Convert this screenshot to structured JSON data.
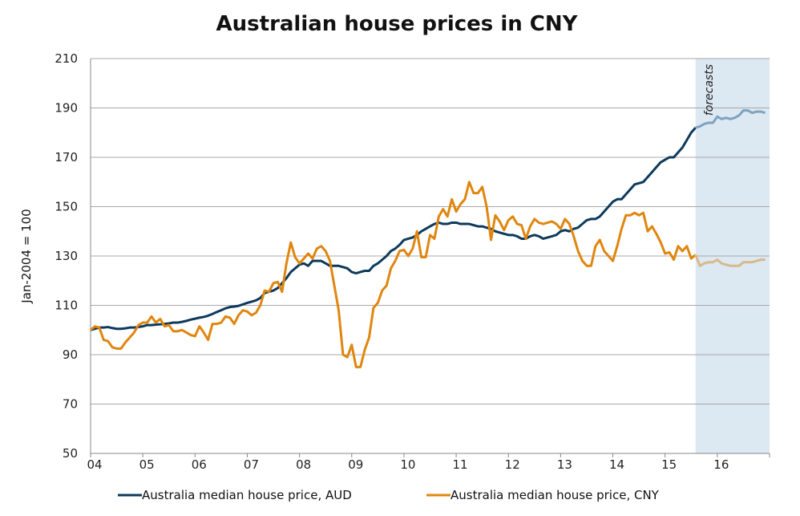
{
  "chart_data": {
    "type": "line",
    "title": "Australian house prices in CNY",
    "xlabel": "",
    "ylabel": "Jan-2004 = 100",
    "ylim": [
      50,
      210
    ],
    "yticks": [
      "50",
      "70",
      "90",
      "110",
      "130",
      "150",
      "170",
      "190",
      "210"
    ],
    "xticks": [
      "04",
      "05",
      "06",
      "07",
      "08",
      "09",
      "10",
      "11",
      "12",
      "13",
      "14",
      "15",
      "16"
    ],
    "grid": "horizontal",
    "legend": "bottom",
    "annotation": "forecasts",
    "forecast_start": "2015-08",
    "colors": {
      "aud": "#0d3a5c",
      "cny": "#e0860f",
      "aud_forecast": "#7fa3bf",
      "cny_forecast": "#d8b98a",
      "forecast_band": "#dce8f2"
    },
    "x": [
      "2004-01",
      "2004-02",
      "2004-03",
      "2004-04",
      "2004-05",
      "2004-06",
      "2004-07",
      "2004-08",
      "2004-09",
      "2004-10",
      "2004-11",
      "2004-12",
      "2005-01",
      "2005-02",
      "2005-03",
      "2005-04",
      "2005-05",
      "2005-06",
      "2005-07",
      "2005-08",
      "2005-09",
      "2005-10",
      "2005-11",
      "2005-12",
      "2006-01",
      "2006-02",
      "2006-03",
      "2006-04",
      "2006-05",
      "2006-06",
      "2006-07",
      "2006-08",
      "2006-09",
      "2006-10",
      "2006-11",
      "2006-12",
      "2007-01",
      "2007-02",
      "2007-03",
      "2007-04",
      "2007-05",
      "2007-06",
      "2007-07",
      "2007-08",
      "2007-09",
      "2007-10",
      "2007-11",
      "2007-12",
      "2008-01",
      "2008-02",
      "2008-03",
      "2008-04",
      "2008-05",
      "2008-06",
      "2008-07",
      "2008-08",
      "2008-09",
      "2008-10",
      "2008-11",
      "2008-12",
      "2009-01",
      "2009-02",
      "2009-03",
      "2009-04",
      "2009-05",
      "2009-06",
      "2009-07",
      "2009-08",
      "2009-09",
      "2009-10",
      "2009-11",
      "2009-12",
      "2010-01",
      "2010-02",
      "2010-03",
      "2010-04",
      "2010-05",
      "2010-06",
      "2010-07",
      "2010-08",
      "2010-09",
      "2010-10",
      "2010-11",
      "2010-12",
      "2011-01",
      "2011-02",
      "2011-03",
      "2011-04",
      "2011-05",
      "2011-06",
      "2011-07",
      "2011-08",
      "2011-09",
      "2011-10",
      "2011-11",
      "2011-12",
      "2012-01",
      "2012-02",
      "2012-03",
      "2012-04",
      "2012-05",
      "2012-06",
      "2012-07",
      "2012-08",
      "2012-09",
      "2012-10",
      "2012-11",
      "2012-12",
      "2013-01",
      "2013-02",
      "2013-03",
      "2013-04",
      "2013-05",
      "2013-06",
      "2013-07",
      "2013-08",
      "2013-09",
      "2013-10",
      "2013-11",
      "2013-12",
      "2014-01",
      "2014-02",
      "2014-03",
      "2014-04",
      "2014-05",
      "2014-06",
      "2014-07",
      "2014-08",
      "2014-09",
      "2014-10",
      "2014-11",
      "2014-12",
      "2015-01",
      "2015-02",
      "2015-03",
      "2015-04",
      "2015-05",
      "2015-06",
      "2015-07",
      "2015-08",
      "2015-09",
      "2015-10",
      "2015-11",
      "2015-12",
      "2016-01",
      "2016-02",
      "2016-03",
      "2016-04",
      "2016-05",
      "2016-06",
      "2016-07",
      "2016-08",
      "2016-09",
      "2016-10",
      "2016-11",
      "2016-12"
    ],
    "series": [
      {
        "name": "Australia median house price, AUD",
        "key": "aud",
        "values": [
          100,
          100.5,
          101,
          101,
          101.2,
          100.8,
          100.5,
          100.5,
          100.7,
          101,
          101,
          101.2,
          101.5,
          102,
          102,
          102.2,
          102.3,
          102.5,
          102.7,
          103,
          103,
          103.3,
          103.7,
          104.2,
          104.6,
          105,
          105.3,
          105.8,
          106.5,
          107.3,
          108,
          108.8,
          109.3,
          109.5,
          109.8,
          110.4,
          111,
          111.5,
          112,
          113,
          115,
          115.5,
          116,
          117,
          119,
          121,
          123.5,
          125,
          126.5,
          127,
          126,
          128,
          128,
          128,
          127,
          126,
          126,
          126,
          125.5,
          125,
          123.5,
          123,
          123.5,
          124,
          124,
          126,
          127,
          128.5,
          130,
          132,
          133,
          134.5,
          136.5,
          137,
          137.5,
          138.5,
          140,
          141,
          142,
          143,
          143.5,
          143,
          143,
          143.5,
          143.5,
          143,
          143,
          143,
          142.5,
          142,
          142,
          141.5,
          141,
          140,
          139.5,
          139,
          138.5,
          138.5,
          138,
          137,
          137,
          138,
          138.5,
          138,
          137,
          137.5,
          138,
          138.5,
          140,
          140.5,
          140,
          141,
          141.5,
          143,
          144.5,
          145,
          145,
          146,
          148,
          150,
          152,
          153,
          153,
          155,
          157,
          159,
          159.5,
          160,
          162,
          164,
          166,
          168,
          169,
          170,
          170,
          172,
          174,
          177,
          180,
          182,
          182.5,
          183.5,
          184,
          184,
          186.5,
          185.5,
          186,
          185.5,
          186,
          187,
          189,
          189,
          188,
          188.5,
          188.5,
          188
        ]
      },
      {
        "name": "Australia median house price, CNY",
        "key": "cny",
        "values": [
          100,
          101.5,
          101,
          96,
          95.5,
          93,
          92.5,
          92.5,
          95,
          97,
          99,
          102,
          103,
          103,
          105.5,
          103,
          104.5,
          101.5,
          102,
          99.5,
          99.5,
          100,
          99,
          98,
          97.5,
          101.5,
          99,
          96,
          102.5,
          102.5,
          103,
          105.5,
          105,
          102.5,
          106,
          108,
          107.5,
          106,
          107,
          110,
          116,
          115.5,
          119,
          119.5,
          115.5,
          127,
          135.5,
          129.5,
          127,
          129,
          131,
          129,
          133,
          134,
          132,
          128,
          118,
          108,
          90,
          89,
          94,
          85,
          85,
          92,
          97,
          109,
          111,
          116,
          118,
          125,
          128,
          132,
          132.5,
          130,
          133,
          140,
          129.5,
          129.5,
          138.5,
          137,
          146,
          149,
          146,
          153,
          148,
          151,
          153,
          160,
          155.5,
          155.5,
          158,
          150,
          136.5,
          146.5,
          144,
          140.5,
          144.5,
          146,
          143,
          142.5,
          137,
          142,
          145,
          143.5,
          143,
          143.5,
          144,
          143,
          141,
          145,
          143,
          138,
          132,
          128,
          126,
          126,
          134,
          136.5,
          132,
          130,
          128,
          134,
          141,
          146.5,
          146.5,
          147.5,
          146.5,
          147.5,
          140,
          142,
          139,
          135.5,
          131,
          131.5,
          128.5,
          134,
          132,
          134,
          129,
          130.5,
          126,
          127,
          127.5,
          127.5,
          128.5,
          127,
          126.5,
          126,
          126,
          126,
          127.5,
          127.5,
          127.5,
          128,
          128.5,
          128.5
        ]
      }
    ]
  }
}
